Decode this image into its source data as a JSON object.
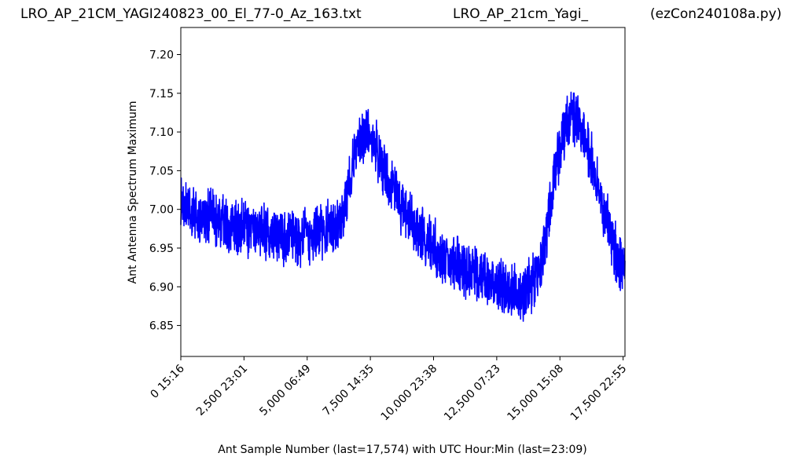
{
  "titles": {
    "left": "LRO_AP_21CM_YAGI240823_00_El_77-0_Az_163.txt",
    "middle": "LRO_AP_21cm_Yagi_",
    "right": "(ezCon240108a.py)"
  },
  "chart_data": {
    "type": "line",
    "xlabel": "Ant Sample Number (last=17,574) with UTC Hour:Min (last=23:09)",
    "ylabel": "Ant Antenna Spectrum Maximum",
    "xlim": [
      0,
      17574
    ],
    "ylim": [
      6.81,
      7.235
    ],
    "x_ticks": [
      {
        "value": 0,
        "label": "0  15:16"
      },
      {
        "value": 2500,
        "label": "2,500  23:01"
      },
      {
        "value": 5000,
        "label": "5,000  06:49"
      },
      {
        "value": 7500,
        "label": "7,500  14:35"
      },
      {
        "value": 10000,
        "label": "10,000  23:38"
      },
      {
        "value": 12500,
        "label": "12,500  07:23"
      },
      {
        "value": 15000,
        "label": "15,000  15:08"
      },
      {
        "value": 17500,
        "label": "17,500  22:55"
      }
    ],
    "y_ticks": [
      6.85,
      6.9,
      6.95,
      7.0,
      7.05,
      7.1,
      7.15,
      7.2
    ],
    "grid": false,
    "series_color": "#0000ff",
    "series": [
      {
        "x": [
          0,
          250,
          500,
          1000,
          1500,
          2000,
          2500,
          3000,
          3500,
          4000,
          4500,
          5000,
          5500,
          6000,
          6300,
          6500,
          6700,
          6900,
          7100,
          7300,
          7500,
          7700,
          7900,
          8100,
          8300,
          8500,
          8700,
          9000,
          9300,
          9600,
          9900,
          10200,
          10500,
          10800,
          11100,
          11400,
          11700,
          12000,
          12300,
          12600,
          12900,
          13200,
          13500,
          13800,
          14100,
          14300,
          14500,
          14700,
          14900,
          15100,
          15300,
          15500,
          15700,
          15900,
          16100,
          16300,
          16500,
          16700,
          16900,
          17100,
          17300,
          17574
        ],
        "y": [
          7.005,
          7.0,
          6.995,
          6.99,
          6.985,
          6.98,
          6.975,
          6.97,
          6.97,
          6.965,
          6.965,
          6.965,
          6.97,
          6.975,
          6.985,
          7.0,
          7.04,
          7.075,
          7.09,
          7.1,
          7.1,
          7.085,
          7.06,
          7.045,
          7.035,
          7.02,
          7.005,
          6.99,
          6.975,
          6.965,
          6.955,
          6.945,
          6.935,
          6.93,
          6.925,
          6.92,
          6.915,
          6.91,
          6.905,
          6.9,
          6.895,
          6.89,
          6.89,
          6.9,
          6.91,
          6.935,
          6.975,
          7.02,
          7.065,
          7.095,
          7.115,
          7.12,
          7.115,
          7.1,
          7.08,
          7.055,
          7.03,
          7.005,
          6.98,
          6.955,
          6.935,
          6.925
        ]
      }
    ]
  }
}
